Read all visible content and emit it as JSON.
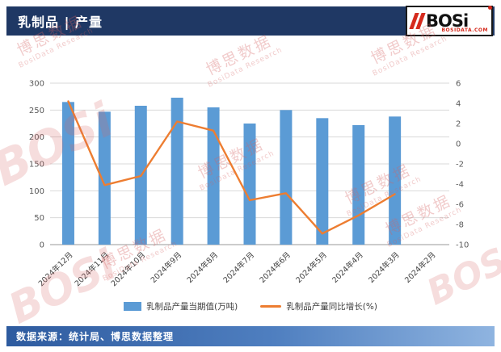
{
  "header": {
    "title": "乳制品 | 产量",
    "logo": {
      "text": "BOSi",
      "subtext": "BOSIDATA.COM"
    }
  },
  "watermark": {
    "cn": "博思数据",
    "en": "BosiData Research",
    "brand": "BOSi"
  },
  "footer": {
    "source": "数据来源：统计局、博思数据整理"
  },
  "chart_data": {
    "type": "bar+line",
    "categories": [
      "2024年12月",
      "2024年11月",
      "2024年10月",
      "2024年9月",
      "2024年8月",
      "2024年7月",
      "2024年6月",
      "2024年5月",
      "2024年4月",
      "2024年3月",
      "2024年2月"
    ],
    "series": [
      {
        "name": "乳制品产量当期值(万吨)",
        "type": "bar",
        "axis": "left",
        "color": "#5B9BD5",
        "values": [
          265,
          247,
          258,
          273,
          255,
          225,
          250,
          235,
          222,
          238,
          null
        ]
      },
      {
        "name": "乳制品产量同比增长(%)",
        "type": "line",
        "axis": "right",
        "color": "#ED7D31",
        "values": [
          4.2,
          -4.1,
          -3.2,
          2.2,
          1.3,
          -5.6,
          -4.9,
          -8.9,
          -7.1,
          -5.0,
          null
        ]
      }
    ],
    "left_axis": {
      "min": 0,
      "max": 300,
      "step": 50
    },
    "right_axis": {
      "min": -10,
      "max": 6,
      "step": 2
    },
    "grid": true,
    "legend_position": "bottom"
  }
}
